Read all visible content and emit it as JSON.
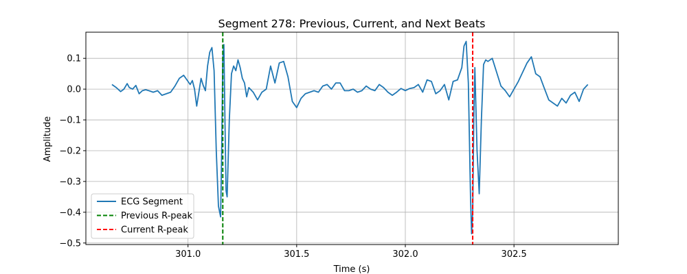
{
  "chart_data": {
    "type": "line",
    "title": "Segment 278: Previous, Current, and Next Beats",
    "xlabel": "Time (s)",
    "ylabel": "Amplitude",
    "xlim": [
      300.53,
      302.98
    ],
    "ylim": [
      -0.505,
      0.185
    ],
    "xticks": [
      301.0,
      301.5,
      302.0,
      302.5
    ],
    "xtick_labels": [
      "301.0",
      "301.5",
      "302.0",
      "302.5"
    ],
    "yticks": [
      -0.5,
      -0.4,
      -0.3,
      -0.2,
      -0.1,
      0.0,
      0.1
    ],
    "ytick_labels": [
      "−0.5",
      "−0.4",
      "−0.3",
      "−0.2",
      "−0.1",
      "0.0",
      "0.1"
    ],
    "grid": true,
    "legend_position": "lower-left",
    "series": [
      {
        "name": "ECG Segment",
        "color": "#1f77b4",
        "style": "solid",
        "x": [
          300.65,
          300.67,
          300.69,
          300.705,
          300.72,
          300.73,
          300.745,
          300.76,
          300.775,
          300.79,
          300.805,
          300.82,
          300.84,
          300.86,
          300.88,
          300.9,
          300.92,
          300.94,
          300.96,
          300.98,
          300.995,
          301.01,
          301.02,
          301.03,
          301.04,
          301.05,
          301.06,
          301.07,
          301.08,
          301.09,
          301.1,
          301.11,
          301.12,
          301.13,
          301.14,
          301.15,
          301.155,
          301.16,
          301.165,
          301.17,
          301.175,
          301.18,
          301.19,
          301.2,
          301.21,
          301.22,
          301.23,
          301.24,
          301.25,
          301.26,
          301.27,
          301.28,
          301.3,
          301.32,
          301.34,
          301.36,
          301.38,
          301.4,
          301.42,
          301.44,
          301.46,
          301.48,
          301.5,
          301.52,
          301.54,
          301.56,
          301.58,
          301.6,
          301.62,
          301.64,
          301.66,
          301.68,
          301.7,
          301.72,
          301.74,
          301.76,
          301.78,
          301.8,
          301.82,
          301.84,
          301.86,
          301.88,
          301.9,
          301.92,
          301.94,
          301.96,
          301.98,
          302.0,
          302.02,
          302.04,
          302.06,
          302.08,
          302.1,
          302.12,
          302.14,
          302.16,
          302.18,
          302.2,
          302.22,
          302.24,
          302.26,
          302.27,
          302.28,
          302.29,
          302.3,
          302.305,
          302.31,
          302.315,
          302.32,
          302.33,
          302.34,
          302.35,
          302.36,
          302.37,
          302.38,
          302.4,
          302.42,
          302.44,
          302.46,
          302.48,
          302.5,
          302.52,
          302.54,
          302.56,
          302.58,
          302.6,
          302.62,
          302.64,
          302.66,
          302.68,
          302.7,
          302.72,
          302.74,
          302.76,
          302.78,
          302.8,
          302.82,
          302.84
        ],
        "y": [
          0.015,
          0.005,
          -0.008,
          0.0,
          0.018,
          0.005,
          0.0,
          0.012,
          -0.015,
          -0.005,
          -0.002,
          -0.005,
          -0.01,
          -0.005,
          -0.02,
          -0.015,
          -0.01,
          0.01,
          0.035,
          0.045,
          0.03,
          0.015,
          0.028,
          0.0,
          -0.055,
          -0.01,
          0.035,
          0.012,
          -0.005,
          0.075,
          0.12,
          0.135,
          0.06,
          -0.2,
          -0.38,
          -0.415,
          -0.2,
          0.1,
          0.145,
          -0.1,
          -0.33,
          -0.35,
          -0.1,
          0.05,
          0.075,
          0.06,
          0.095,
          0.07,
          0.035,
          0.02,
          -0.025,
          0.005,
          -0.01,
          -0.035,
          -0.01,
          0.0,
          0.075,
          0.02,
          0.085,
          0.09,
          0.04,
          -0.04,
          -0.06,
          -0.03,
          -0.015,
          -0.01,
          -0.005,
          -0.01,
          0.01,
          0.015,
          0.0,
          0.02,
          0.02,
          -0.005,
          -0.005,
          0.0,
          -0.01,
          -0.005,
          0.01,
          0.0,
          -0.005,
          0.015,
          0.005,
          -0.01,
          -0.02,
          -0.01,
          0.002,
          -0.005,
          0.002,
          0.005,
          0.015,
          -0.01,
          0.03,
          0.025,
          -0.015,
          -0.005,
          0.015,
          -0.035,
          0.025,
          0.03,
          0.07,
          0.14,
          0.155,
          0.02,
          -0.35,
          -0.47,
          -0.4,
          -0.1,
          0.07,
          -0.2,
          -0.34,
          -0.1,
          0.08,
          0.095,
          0.09,
          0.1,
          0.055,
          0.01,
          -0.005,
          -0.025,
          0.0,
          0.025,
          0.055,
          0.085,
          0.105,
          0.05,
          0.04,
          0.002,
          -0.035,
          -0.045,
          -0.055,
          -0.03,
          -0.045,
          -0.02,
          -0.01,
          -0.04,
          0.0,
          0.015
        ]
      },
      {
        "name": "Previous R-peak",
        "color": "#008000",
        "style": "dashed",
        "x_value": 301.16
      },
      {
        "name": "Current R-peak",
        "color": "#ff0000",
        "style": "dashed",
        "x_value": 302.31
      }
    ]
  }
}
